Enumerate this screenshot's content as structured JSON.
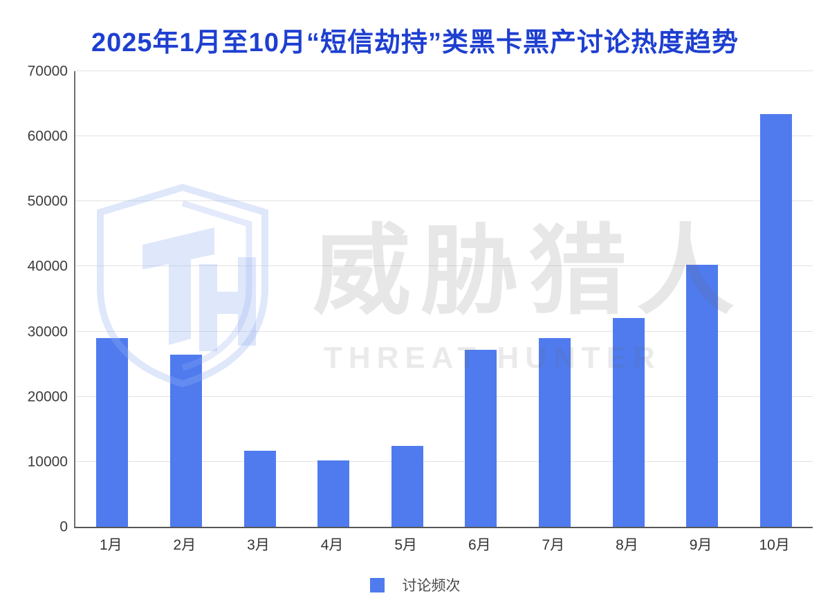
{
  "title": {
    "text": "2025年1月至10月“短信劫持”类黑卡黑产讨论热度趋势",
    "color": "#1e3fd0"
  },
  "chart_data": {
    "type": "bar",
    "categories": [
      "1月",
      "2月",
      "3月",
      "4月",
      "5月",
      "6月",
      "7月",
      "8月",
      "9月",
      "10月"
    ],
    "series": [
      {
        "name": "讨论频次",
        "color": "#4f7bef",
        "values": [
          29000,
          26500,
          11700,
          10200,
          12400,
          27200,
          29000,
          32100,
          40300,
          63400
        ]
      }
    ],
    "title": "2025年1月至10月“短信劫持”类黑卡黑产讨论热度趋势",
    "xlabel": "",
    "ylabel": "",
    "ylim": [
      0,
      70000
    ],
    "yticks": [
      0,
      10000,
      20000,
      30000,
      40000,
      50000,
      60000,
      70000
    ],
    "grid": true,
    "legend_position": "bottom"
  },
  "legend": {
    "label": "讨论频次",
    "swatch_color": "#4f7bef"
  },
  "watermark": {
    "cjk_text": "威胁猎人",
    "latin_text": "THREAT HUNTER",
    "logo_monogram": "TH"
  },
  "colors": {
    "bar": "#4f7bef",
    "title": "#1e3fd0",
    "axis_label": "#3d3d3d",
    "gridline": "#e2e2e2",
    "axis_line": "#565656"
  }
}
